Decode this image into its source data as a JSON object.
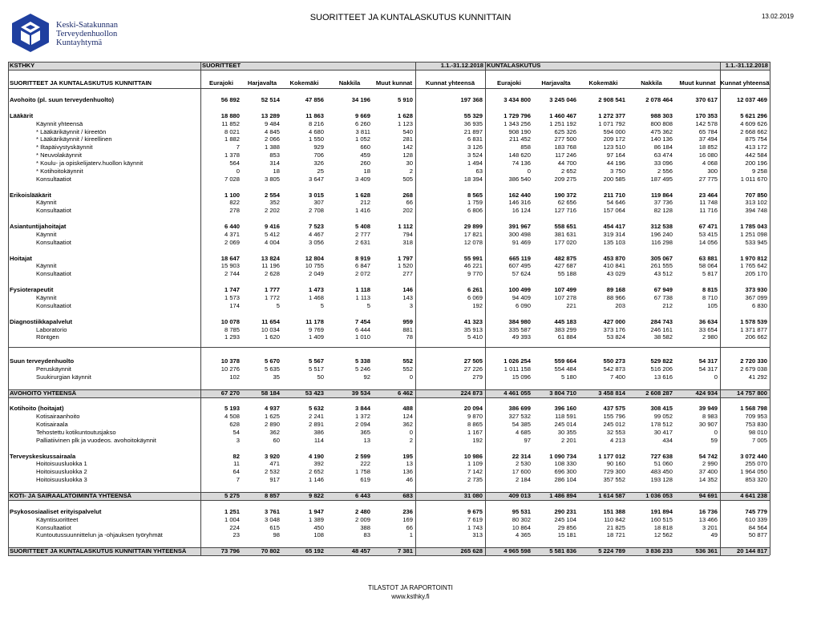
{
  "header": {
    "logo_lines": [
      "Keski-Satakunnan",
      "Terveydenhuollon",
      "Kuntayhtymä"
    ],
    "title": "SUORITTEET JA KUNTALASKUTUS KUNNITTAIN",
    "date": "13.02.2019"
  },
  "table": {
    "group_row": [
      "KSTHKY",
      "SUORITTEET",
      "1.1.-31.12.2018",
      "KUNTALASKUTUS",
      "1.1.-31.12.2018"
    ],
    "columns": [
      "SUORITTEET JA KUNTALASKUTUS KUNNITTAIN",
      "Eurajoki",
      "Harjavalta",
      "Kokemäki",
      "Nakkila",
      "Muut kunnat",
      "Kunnat yhteensä",
      "Eurajoki",
      "Harjavalta",
      "Kokemäki",
      "Nakkila",
      "Muut kunnat",
      "Kunnat yhteensä"
    ],
    "rows": [
      [
        "Avohoito (pl. suun terveydenhuolto)",
        "56 892",
        "52 514",
        "47 856",
        "34 196",
        "5 910",
        "197 368",
        "3 434 800",
        "3 245 046",
        "2 908 541",
        "2 078 464",
        "370 617",
        "12 037 469"
      ],
      [
        "Lääkärit",
        "18 880",
        "13 289",
        "11 863",
        "9 669",
        "1 628",
        "55 329",
        "1 729 796",
        "1 460 467",
        "1 272 377",
        "988 303",
        "170 353",
        "5 621 296"
      ],
      [
        "Käynnit yhteensä",
        "11 852",
        "9 484",
        "8 216",
        "6 260",
        "1 123",
        "36 935",
        "1 343 256",
        "1 251 192",
        "1 071 792",
        "800 808",
        "142 578",
        "4 609 626"
      ],
      [
        "* Lääkärikäynnit / kireetön",
        "8 021",
        "4 845",
        "4 680",
        "3 811",
        "540",
        "21 897",
        "908 190",
        "625 326",
        "594 000",
        "475 362",
        "65 784",
        "2 668 662"
      ],
      [
        "* Lääkärikäynnit / kireellinen",
        "1 882",
        "2 066",
        "1 550",
        "1 052",
        "281",
        "6 831",
        "211 452",
        "277 500",
        "209 172",
        "140 136",
        "37 494",
        "875 754"
      ],
      [
        "* Iltapäivystyskäynnit",
        "7",
        "1 388",
        "929",
        "660",
        "142",
        "3 126",
        "858",
        "183 768",
        "123 510",
        "86 184",
        "18 852",
        "413 172"
      ],
      [
        "* Neuvolakäynnit",
        "1 378",
        "853",
        "706",
        "459",
        "128",
        "3 524",
        "148 620",
        "117 246",
        "97 164",
        "63 474",
        "16 080",
        "442 584"
      ],
      [
        "* Koulu- ja opiskelijaterv.huollon käynnit",
        "564",
        "314",
        "326",
        "260",
        "30",
        "1 494",
        "74 136",
        "44 700",
        "44 196",
        "33 096",
        "4 068",
        "200 196"
      ],
      [
        "* Kotihoitokäynnit",
        "0",
        "18",
        "25",
        "18",
        "2",
        "63",
        "0",
        "2 652",
        "3 750",
        "2 556",
        "300",
        "9 258"
      ],
      [
        "Konsultaatiot",
        "7 028",
        "3 805",
        "3 647",
        "3 409",
        "505",
        "18 394",
        "386 540",
        "209 275",
        "200 585",
        "187 495",
        "27 775",
        "1 011 670"
      ],
      [
        "Erikoislääkärit",
        "1 100",
        "2 554",
        "3 015",
        "1 628",
        "268",
        "8 565",
        "162 440",
        "190 372",
        "211 710",
        "119 864",
        "23 464",
        "707 850"
      ],
      [
        "Käynnit",
        "822",
        "352",
        "307",
        "212",
        "66",
        "1 759",
        "146 316",
        "62 656",
        "54 646",
        "37 736",
        "11 748",
        "313 102"
      ],
      [
        "Konsultaatiot",
        "278",
        "2 202",
        "2 708",
        "1 416",
        "202",
        "6 806",
        "16 124",
        "127 716",
        "157 064",
        "82 128",
        "11 716",
        "394 748"
      ],
      [
        "Asiantuntijahoitajat",
        "6 440",
        "9 416",
        "7 523",
        "5 408",
        "1 112",
        "29 899",
        "391 967",
        "558 651",
        "454 417",
        "312 538",
        "67 471",
        "1 785 043"
      ],
      [
        "Käynnit",
        "4 371",
        "5 412",
        "4 467",
        "2 777",
        "794",
        "17 821",
        "300 498",
        "381 631",
        "319 314",
        "196 240",
        "53 415",
        "1 251 098"
      ],
      [
        "Konsultaatiot",
        "2 069",
        "4 004",
        "3 056",
        "2 631",
        "318",
        "12 078",
        "91 469",
        "177 020",
        "135 103",
        "116 298",
        "14 056",
        "533 945"
      ],
      [
        "Hoitajat",
        "18 647",
        "13 824",
        "12 804",
        "8 919",
        "1 797",
        "55 991",
        "665 119",
        "482 875",
        "453 870",
        "305 067",
        "63 881",
        "1 970 812"
      ],
      [
        "Käynnit",
        "15 903",
        "11 196",
        "10 755",
        "6 847",
        "1 520",
        "46 221",
        "607 495",
        "427 687",
        "410 841",
        "261 555",
        "58 064",
        "1 765 642"
      ],
      [
        "Konsultaatiot",
        "2 744",
        "2 628",
        "2 049",
        "2 072",
        "277",
        "9 770",
        "57 624",
        "55 188",
        "43 029",
        "43 512",
        "5 817",
        "205 170"
      ],
      [
        "Fysioterapeutit",
        "1 747",
        "1 777",
        "1 473",
        "1 118",
        "146",
        "6 261",
        "100 499",
        "107 499",
        "89 168",
        "67 949",
        "8 815",
        "373 930"
      ],
      [
        "Käynnit",
        "1 573",
        "1 772",
        "1 468",
        "1 113",
        "143",
        "6 069",
        "94 409",
        "107 278",
        "88 966",
        "67 738",
        "8 710",
        "367 099"
      ],
      [
        "Konsultaatiot",
        "174",
        "5",
        "5",
        "5",
        "3",
        "192",
        "6 090",
        "221",
        "203",
        "212",
        "105",
        "6 830"
      ],
      [
        "Diagnostiikkapalvelut",
        "10 078",
        "11 654",
        "11 178",
        "7 454",
        "959",
        "41 323",
        "384 980",
        "445 183",
        "427 000",
        "284 743",
        "36 634",
        "1 578 539"
      ],
      [
        "Laboratorio",
        "8 785",
        "10 034",
        "9 769",
        "6 444",
        "881",
        "35 913",
        "335 587",
        "383 299",
        "373 176",
        "246 161",
        "33 654",
        "1 371 877"
      ],
      [
        "Röntgen",
        "1 293",
        "1 620",
        "1 409",
        "1 010",
        "78",
        "5 410",
        "49 393",
        "61 884",
        "53 824",
        "38 582",
        "2 980",
        "206 662"
      ],
      [
        "Suun terveydenhuolto",
        "10 378",
        "5 670",
        "5 567",
        "5 338",
        "552",
        "27 505",
        "1 026 254",
        "559 664",
        "550 273",
        "529 822",
        "54 317",
        "2 720 330"
      ],
      [
        "Peruskäynnit",
        "10 276",
        "5 635",
        "5 517",
        "5 246",
        "552",
        "27 226",
        "1 011 158",
        "554 484",
        "542 873",
        "516 206",
        "54 317",
        "2 679 038"
      ],
      [
        "Suukirurgian käynnit",
        "102",
        "35",
        "50",
        "92",
        "0",
        "279",
        "15 096",
        "5 180",
        "7 400",
        "13 616",
        "0",
        "41 292"
      ],
      [
        "AVOHOITO YHTEENSÄ",
        "67 270",
        "58 184",
        "53 423",
        "39 534",
        "6 462",
        "224 873",
        "4 461 055",
        "3 804 710",
        "3 458 814",
        "2 608 287",
        "424 934",
        "14 757 800"
      ],
      [
        "Kotihoito (hoitajat)",
        "5 193",
        "4 937",
        "5 632",
        "3 844",
        "488",
        "20 094",
        "386 699",
        "396 160",
        "437 575",
        "308 415",
        "39 949",
        "1 568 798"
      ],
      [
        "Kotisairaanhoito",
        "4 508",
        "1 625",
        "2 241",
        "1 372",
        "124",
        "9 870",
        "327 532",
        "118 591",
        "155 796",
        "99 052",
        "8 983",
        "709 953"
      ],
      [
        "Kotisairaala",
        "628",
        "2 890",
        "2 891",
        "2 094",
        "362",
        "8 865",
        "54 385",
        "245 014",
        "245 012",
        "178 512",
        "30 907",
        "753 830"
      ],
      [
        "Tehostettu kotikuntoutusjakso",
        "54",
        "362",
        "386",
        "365",
        "0",
        "1 167",
        "4 685",
        "30 355",
        "32 553",
        "30 417",
        "0",
        "98 010"
      ],
      [
        "Palliatiivinen plk ja vuodeos. avohoitokäynnit",
        "3",
        "60",
        "114",
        "13",
        "2",
        "192",
        "97",
        "2 201",
        "4 213",
        "434",
        "59",
        "7 005"
      ],
      [
        "Terveyskeskussairaala",
        "82",
        "3 920",
        "4 190",
        "2 599",
        "195",
        "10 986",
        "22 314",
        "1 090 734",
        "1 177 012",
        "727 638",
        "54 742",
        "3 072 440"
      ],
      [
        "Hoitoisuusluokka 1",
        "11",
        "471",
        "392",
        "222",
        "13",
        "1 109",
        "2 530",
        "108 330",
        "90 160",
        "51 060",
        "2 990",
        "255 070"
      ],
      [
        "Hoitoisuusluokka 2",
        "64",
        "2 532",
        "2 652",
        "1 758",
        "136",
        "7 142",
        "17 600",
        "696 300",
        "729 300",
        "483 450",
        "37 400",
        "1 964 050"
      ],
      [
        "Hoitoisuusluokka 3",
        "7",
        "917",
        "1 146",
        "619",
        "46",
        "2 735",
        "2 184",
        "286 104",
        "357 552",
        "193 128",
        "14 352",
        "853 320"
      ],
      [
        "KOTI- JA SAIRAALATOIMINTA YHTEENSÄ",
        "5 275",
        "8 857",
        "9 822",
        "6 443",
        "683",
        "31 080",
        "409 013",
        "1 486 894",
        "1 614 587",
        "1 036 053",
        "94 691",
        "4 641 238"
      ],
      [
        "Psykososiaaliset erityispalvelut",
        "1 251",
        "3 761",
        "1 947",
        "2 480",
        "236",
        "9 675",
        "95 531",
        "290 231",
        "151 388",
        "191 894",
        "16 736",
        "745 779"
      ],
      [
        "Käyntisuoritteet",
        "1 004",
        "3 048",
        "1 389",
        "2 009",
        "169",
        "7 619",
        "80 302",
        "245 104",
        "110 842",
        "160 515",
        "13 466",
        "610 339"
      ],
      [
        "Konsultaatiot",
        "224",
        "615",
        "450",
        "388",
        "66",
        "1 743",
        "10 864",
        "29 856",
        "21 825",
        "18 818",
        "3 201",
        "84 564"
      ],
      [
        "Kuntoutussuunnittelun ja -ohjauksen työryhmät",
        "23",
        "98",
        "108",
        "83",
        "1",
        "313",
        "4 365",
        "15 181",
        "18 721",
        "12 562",
        "49",
        "50 877"
      ],
      [
        "SUORITTEET JA KUNTALASKUTUS KUNNITTAIN YHTEENSÄ",
        "73 796",
        "70 802",
        "65 192",
        "48 457",
        "7 381",
        "265 628",
        "4 965 598",
        "5 581 836",
        "5 224 789",
        "3 836 233",
        "536 361",
        "20 144 817"
      ]
    ]
  },
  "footer": {
    "lines": [
      "TILASTOT JA RAPORTOINTI",
      "www.ksthky.fi"
    ]
  }
}
